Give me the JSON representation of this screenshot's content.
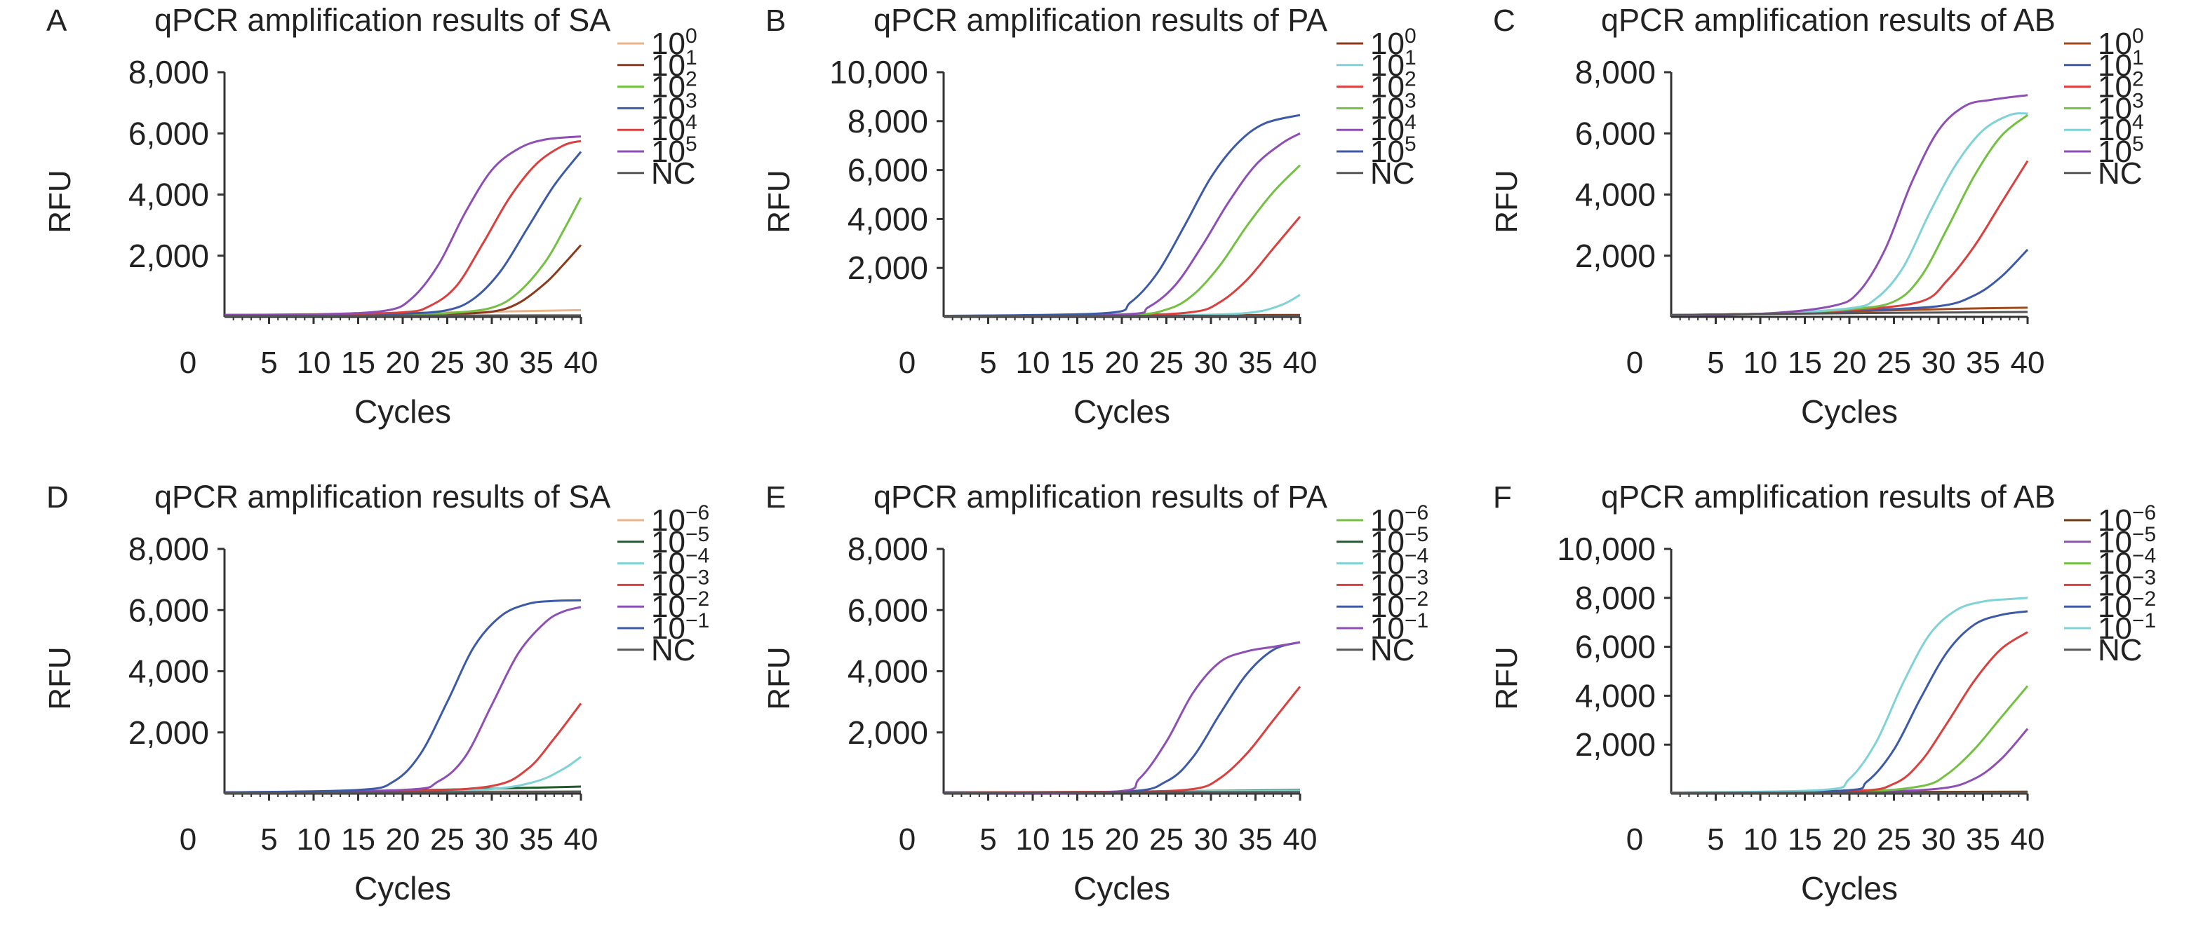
{
  "chart_data": [
    {
      "panel": "A",
      "type": "line",
      "title": "qPCR amplification results of SA",
      "xlabel": "Cycles",
      "ylabel": "RFU",
      "xlim": [
        0,
        40
      ],
      "ylim": [
        0,
        8000
      ],
      "x_ticks": [
        "0",
        "5",
        "10",
        "15",
        "20",
        "25",
        "30",
        "35",
        "40"
      ],
      "y_ticks": [
        "8,000",
        "6,000",
        "4,000",
        "2,000"
      ],
      "y_tick_values": [
        8000,
        6000,
        4000,
        2000
      ],
      "legend_position": "right",
      "series": [
        {
          "name": "10",
          "exp": "0",
          "color": "#e8b48a",
          "x": [
            0,
            10,
            20,
            30,
            40
          ],
          "y": [
            60,
            90,
            120,
            170,
            220
          ]
        },
        {
          "name": "10",
          "exp": "1",
          "color": "#8b3a1c",
          "x": [
            0,
            10,
            20,
            25,
            30,
            33,
            36,
            38,
            40
          ],
          "y": [
            60,
            70,
            80,
            100,
            170,
            450,
            1100,
            1700,
            2350
          ]
        },
        {
          "name": "10",
          "exp": "2",
          "color": "#74c043",
          "x": [
            0,
            10,
            20,
            25,
            30,
            33,
            36,
            38,
            40
          ],
          "y": [
            60,
            70,
            80,
            120,
            300,
            800,
            1800,
            2800,
            3900
          ]
        },
        {
          "name": "10",
          "exp": "3",
          "color": "#3d5aa8",
          "x": [
            0,
            10,
            20,
            25,
            28,
            31,
            34,
            37,
            40
          ],
          "y": [
            60,
            80,
            110,
            220,
            600,
            1500,
            2900,
            4300,
            5400
          ]
        },
        {
          "name": "10",
          "exp": "4",
          "color": "#d9403e",
          "x": [
            0,
            10,
            20,
            23,
            26,
            29,
            32,
            35,
            38,
            40
          ],
          "y": [
            60,
            80,
            150,
            350,
            1000,
            2400,
            3900,
            5000,
            5600,
            5750
          ]
        },
        {
          "name": "10",
          "exp": "5",
          "color": "#8e4fb5",
          "x": [
            0,
            10,
            18,
            21,
            24,
            27,
            30,
            33,
            36,
            40
          ],
          "y": [
            60,
            80,
            200,
            600,
            1700,
            3400,
            4800,
            5500,
            5800,
            5900
          ]
        },
        {
          "name": "NC",
          "exp": "",
          "color": "#555555",
          "x": [
            0,
            20,
            40
          ],
          "y": [
            30,
            40,
            50
          ]
        }
      ]
    },
    {
      "panel": "B",
      "type": "line",
      "title": "qPCR amplification results of PA",
      "xlabel": "Cycles",
      "ylabel": "RFU",
      "xlim": [
        0,
        40
      ],
      "ylim": [
        0,
        10000
      ],
      "x_ticks": [
        "0",
        "5",
        "10",
        "15",
        "20",
        "25",
        "30",
        "35",
        "40"
      ],
      "y_ticks": [
        "10,000",
        "8,000",
        "6,000",
        "4,000",
        "2,000"
      ],
      "y_tick_values": [
        10000,
        8000,
        6000,
        4000,
        2000
      ],
      "legend_position": "right",
      "series": [
        {
          "name": "10",
          "exp": "0",
          "color": "#8b3a1c",
          "x": [
            0,
            20,
            40
          ],
          "y": [
            40,
            60,
            80
          ]
        },
        {
          "name": "10",
          "exp": "1",
          "color": "#7fd3d6",
          "x": [
            0,
            20,
            30,
            35,
            38,
            40
          ],
          "y": [
            40,
            60,
            90,
            200,
            500,
            900
          ]
        },
        {
          "name": "10",
          "exp": "2",
          "color": "#d9403e",
          "x": [
            0,
            20,
            28,
            31,
            34,
            37,
            40
          ],
          "y": [
            40,
            70,
            200,
            600,
            1500,
            2800,
            4100
          ]
        },
        {
          "name": "10",
          "exp": "3",
          "color": "#74c043",
          "x": [
            0,
            20,
            25,
            28,
            31,
            34,
            37,
            40
          ],
          "y": [
            40,
            80,
            300,
            900,
            2100,
            3700,
            5100,
            6200
          ]
        },
        {
          "name": "10",
          "exp": "4",
          "color": "#8e4fb5",
          "x": [
            0,
            20,
            23,
            26,
            29,
            32,
            35,
            38,
            40
          ],
          "y": [
            40,
            100,
            400,
            1300,
            2900,
            4700,
            6200,
            7100,
            7500
          ]
        },
        {
          "name": "10",
          "exp": "5",
          "color": "#3d5aa8",
          "x": [
            0,
            18,
            21,
            24,
            27,
            30,
            33,
            36,
            40
          ],
          "y": [
            40,
            150,
            600,
            1800,
            3700,
            5700,
            7100,
            7900,
            8250
          ]
        },
        {
          "name": "NC",
          "exp": "",
          "color": "#555555",
          "x": [
            0,
            20,
            40
          ],
          "y": [
            30,
            40,
            50
          ]
        }
      ]
    },
    {
      "panel": "C",
      "type": "line",
      "title": "qPCR amplification results of AB",
      "xlabel": "Cycles",
      "ylabel": "RFU",
      "xlim": [
        0,
        40
      ],
      "ylim": [
        0,
        8000
      ],
      "x_ticks": [
        "0",
        "5",
        "10",
        "15",
        "20",
        "25",
        "30",
        "35",
        "40"
      ],
      "y_ticks": [
        "8,000",
        "6,000",
        "4,000",
        "2,000"
      ],
      "y_tick_values": [
        8000,
        6000,
        4000,
        2000
      ],
      "legend_position": "right",
      "series": [
        {
          "name": "10",
          "exp": "0",
          "color": "#a04a1c",
          "x": [
            0,
            10,
            20,
            30,
            35,
            40
          ],
          "y": [
            60,
            100,
            180,
            250,
            280,
            300
          ]
        },
        {
          "name": "10",
          "exp": "1",
          "color": "#3d5aa8",
          "x": [
            0,
            10,
            20,
            30,
            34,
            37,
            40
          ],
          "y": [
            60,
            100,
            200,
            350,
            700,
            1300,
            2200
          ]
        },
        {
          "name": "10",
          "exp": "2",
          "color": "#d9403e",
          "x": [
            0,
            10,
            20,
            28,
            31,
            34,
            37,
            40
          ],
          "y": [
            60,
            100,
            220,
            500,
            1200,
            2300,
            3700,
            5100
          ]
        },
        {
          "name": "10",
          "exp": "3",
          "color": "#74c043",
          "x": [
            0,
            10,
            20,
            25,
            28,
            31,
            34,
            37,
            40
          ],
          "y": [
            60,
            100,
            250,
            500,
            1300,
            2900,
            4600,
            5900,
            6600
          ]
        },
        {
          "name": "10",
          "exp": "4",
          "color": "#7fd3d6",
          "x": [
            0,
            10,
            20,
            23,
            26,
            29,
            32,
            35,
            38,
            40
          ],
          "y": [
            60,
            100,
            280,
            600,
            1600,
            3400,
            5000,
            6100,
            6600,
            6650
          ]
        },
        {
          "name": "10",
          "exp": "5",
          "color": "#8e4fb5",
          "x": [
            0,
            10,
            18,
            21,
            24,
            27,
            30,
            33,
            36,
            40
          ],
          "y": [
            60,
            100,
            350,
            800,
            2200,
            4400,
            6100,
            6900,
            7100,
            7250
          ]
        },
        {
          "name": "NC",
          "exp": "",
          "color": "#555555",
          "x": [
            0,
            20,
            40
          ],
          "y": [
            60,
            120,
            160
          ]
        }
      ]
    },
    {
      "panel": "D",
      "type": "line",
      "title": "qPCR amplification results of SA",
      "xlabel": "Cycles",
      "ylabel": "RFU",
      "xlim": [
        0,
        40
      ],
      "ylim": [
        0,
        8000
      ],
      "x_ticks": [
        "0",
        "5",
        "10",
        "15",
        "20",
        "25",
        "30",
        "35",
        "40"
      ],
      "y_ticks": [
        "8,000",
        "6,000",
        "4,000",
        "2,000"
      ],
      "y_tick_values": [
        8000,
        6000,
        4000,
        2000
      ],
      "legend_position": "right",
      "series": [
        {
          "name": "10",
          "exp": "−6",
          "color": "#e8b48a",
          "x": [
            0,
            20,
            40
          ],
          "y": [
            40,
            60,
            80
          ]
        },
        {
          "name": "10",
          "exp": "−5",
          "color": "#1e5a2a",
          "x": [
            0,
            10,
            20,
            30,
            40
          ],
          "y": [
            40,
            60,
            100,
            160,
            230
          ]
        },
        {
          "name": "10",
          "exp": "−4",
          "color": "#7fd3d6",
          "x": [
            0,
            20,
            30,
            35,
            38,
            40
          ],
          "y": [
            40,
            70,
            150,
            400,
            800,
            1200
          ]
        },
        {
          "name": "10",
          "exp": "−3",
          "color": "#d9403e",
          "x": [
            0,
            20,
            30,
            34,
            37,
            40
          ],
          "y": [
            40,
            80,
            250,
            800,
            1800,
            2950
          ]
        },
        {
          "name": "10",
          "exp": "−2",
          "color": "#8e4fb5",
          "x": [
            0,
            20,
            24,
            27,
            30,
            33,
            36,
            38,
            40
          ],
          "y": [
            40,
            120,
            400,
            1200,
            2900,
            4600,
            5600,
            5950,
            6100
          ]
        },
        {
          "name": "10",
          "exp": "−1",
          "color": "#3d5aa8",
          "x": [
            0,
            15,
            19,
            22,
            25,
            28,
            31,
            34,
            37,
            40
          ],
          "y": [
            40,
            120,
            400,
            1300,
            3000,
            4800,
            5800,
            6200,
            6300,
            6320
          ]
        },
        {
          "name": "NC",
          "exp": "",
          "color": "#555555",
          "x": [
            0,
            20,
            40
          ],
          "y": [
            20,
            40,
            60
          ]
        }
      ]
    },
    {
      "panel": "E",
      "type": "line",
      "title": "qPCR amplification results of PA",
      "xlabel": "Cycles",
      "ylabel": "RFU",
      "xlim": [
        0,
        40
      ],
      "ylim": [
        0,
        8000
      ],
      "x_ticks": [
        "0",
        "5",
        "10",
        "15",
        "20",
        "25",
        "30",
        "35",
        "40"
      ],
      "y_ticks": [
        "8,000",
        "6,000",
        "4,000",
        "2,000"
      ],
      "y_tick_values": [
        8000,
        6000,
        4000,
        2000
      ],
      "legend_position": "right",
      "series": [
        {
          "name": "10",
          "exp": "−6",
          "color": "#74c043",
          "x": [
            0,
            20,
            40
          ],
          "y": [
            40,
            50,
            60
          ]
        },
        {
          "name": "10",
          "exp": "−5",
          "color": "#1e5a2a",
          "x": [
            0,
            20,
            40
          ],
          "y": [
            40,
            60,
            120
          ]
        },
        {
          "name": "10",
          "exp": "−4",
          "color": "#7fd3d6",
          "x": [
            0,
            20,
            40
          ],
          "y": [
            40,
            60,
            100
          ]
        },
        {
          "name": "10",
          "exp": "−3",
          "color": "#d9403e",
          "x": [
            0,
            20,
            28,
            31,
            34,
            37,
            40
          ],
          "y": [
            40,
            60,
            150,
            500,
            1300,
            2400,
            3500
          ]
        },
        {
          "name": "10",
          "exp": "−2",
          "color": "#3d5aa8",
          "x": [
            0,
            20,
            25,
            28,
            31,
            34,
            37,
            40
          ],
          "y": [
            40,
            60,
            400,
            1200,
            2600,
            3900,
            4700,
            4950
          ]
        },
        {
          "name": "10",
          "exp": "−1",
          "color": "#8e4fb5",
          "x": [
            0,
            19,
            22,
            25,
            28,
            31,
            34,
            37,
            40
          ],
          "y": [
            40,
            60,
            500,
            1700,
            3300,
            4300,
            4650,
            4800,
            4950
          ]
        },
        {
          "name": "NC",
          "exp": "",
          "color": "#555555",
          "x": [
            0,
            20,
            40
          ],
          "y": [
            30,
            40,
            50
          ]
        }
      ]
    },
    {
      "panel": "F",
      "type": "line",
      "title": "qPCR amplification results of AB",
      "xlabel": "Cycles",
      "ylabel": "RFU",
      "xlim": [
        0,
        40
      ],
      "ylim": [
        0,
        10000
      ],
      "x_ticks": [
        "0",
        "5",
        "10",
        "15",
        "20",
        "25",
        "30",
        "35",
        "40"
      ],
      "y_ticks": [
        "10,000",
        "8,000",
        "6,000",
        "4,000",
        "2,000"
      ],
      "y_tick_values": [
        10000,
        8000,
        6000,
        4000,
        2000
      ],
      "legend_position": "right",
      "series": [
        {
          "name": "10",
          "exp": "−6",
          "color": "#6b3a12",
          "x": [
            0,
            20,
            40
          ],
          "y": [
            40,
            60,
            80
          ]
        },
        {
          "name": "10",
          "exp": "−5",
          "color": "#8e4fb5",
          "x": [
            0,
            20,
            30,
            34,
            37,
            40
          ],
          "y": [
            40,
            70,
            200,
            600,
            1400,
            2650
          ]
        },
        {
          "name": "10",
          "exp": "−4",
          "color": "#74c043",
          "x": [
            0,
            20,
            28,
            31,
            34,
            37,
            40
          ],
          "y": [
            40,
            80,
            300,
            800,
            1800,
            3100,
            4400
          ]
        },
        {
          "name": "10",
          "exp": "−3",
          "color": "#d9403e",
          "x": [
            0,
            20,
            25,
            28,
            31,
            34,
            37,
            40
          ],
          "y": [
            40,
            100,
            400,
            1300,
            2900,
            4600,
            5900,
            6600
          ]
        },
        {
          "name": "10",
          "exp": "−2",
          "color": "#3d5aa8",
          "x": [
            0,
            19,
            22,
            25,
            28,
            31,
            34,
            37,
            40
          ],
          "y": [
            40,
            120,
            500,
            1800,
            3900,
            5800,
            6900,
            7300,
            7450
          ]
        },
        {
          "name": "10",
          "exp": "−1",
          "color": "#7fd3d6",
          "x": [
            0,
            17,
            20,
            23,
            26,
            29,
            32,
            35,
            38,
            40
          ],
          "y": [
            40,
            150,
            600,
            2100,
            4500,
            6500,
            7500,
            7850,
            7950,
            8000
          ]
        },
        {
          "name": "NC",
          "exp": "",
          "color": "#555555",
          "x": [
            0,
            20,
            40
          ],
          "y": [
            30,
            40,
            50
          ]
        }
      ]
    }
  ]
}
